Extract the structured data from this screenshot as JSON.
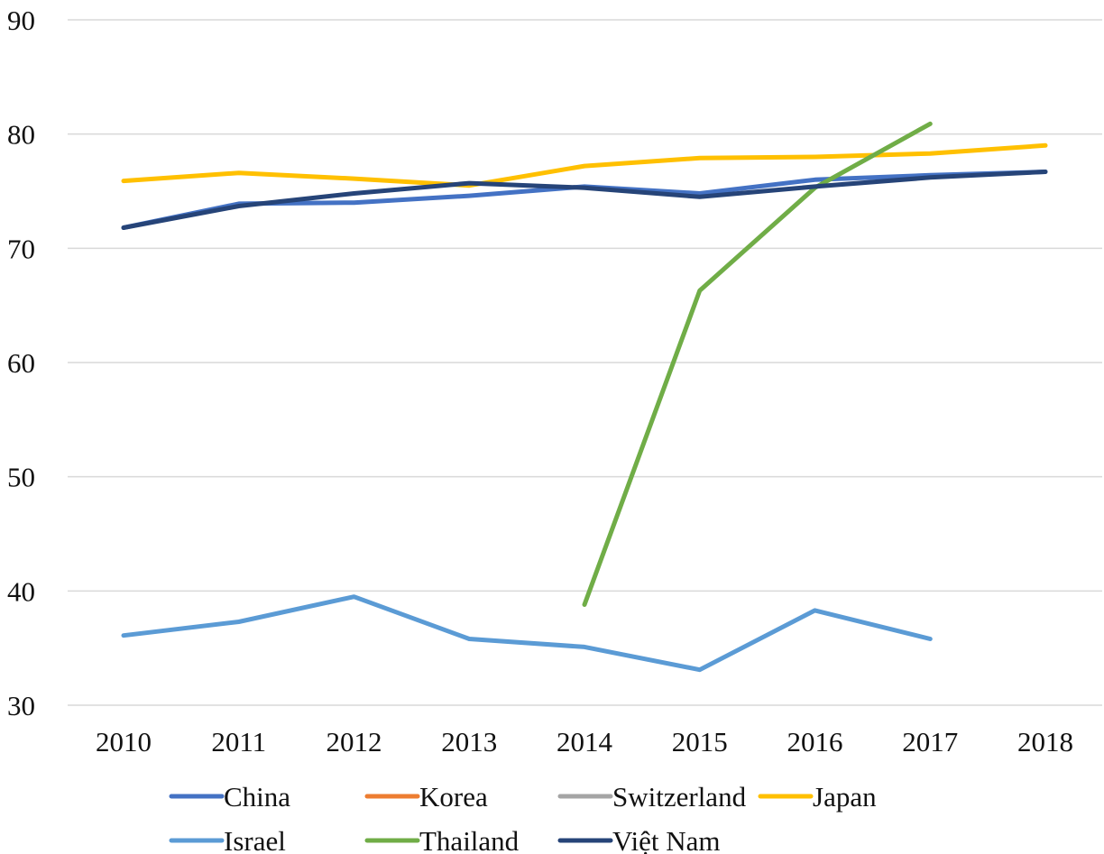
{
  "chart_data": {
    "type": "line",
    "title": "",
    "xlabel": "",
    "ylabel": "",
    "x": [
      "2010",
      "2011",
      "2012",
      "2013",
      "2014",
      "2015",
      "2016",
      "2017",
      "2018"
    ],
    "ylim": [
      30,
      90
    ],
    "yticks": [
      30,
      40,
      50,
      60,
      70,
      80,
      90
    ],
    "grid": "horizontal",
    "legend_position": "bottom",
    "series": [
      {
        "name": "China",
        "color": "#4472c4",
        "values": [
          71.8,
          73.9,
          74.0,
          74.6,
          75.4,
          74.8,
          76.0,
          76.4,
          76.7
        ]
      },
      {
        "name": "Korea",
        "color": "#ed7d31",
        "values": [
          null,
          null,
          null,
          null,
          null,
          null,
          null,
          null,
          null
        ]
      },
      {
        "name": "Switzerland",
        "color": "#a5a5a5",
        "values": [
          null,
          null,
          null,
          null,
          null,
          null,
          null,
          null,
          null
        ]
      },
      {
        "name": "Japan",
        "color": "#ffc000",
        "values": [
          75.9,
          76.6,
          76.1,
          75.5,
          77.2,
          77.9,
          78.0,
          78.3,
          79.0
        ]
      },
      {
        "name": "Israel",
        "color": "#5b9bd5",
        "values": [
          36.1,
          37.3,
          39.5,
          35.8,
          35.1,
          33.1,
          38.3,
          35.8,
          null
        ]
      },
      {
        "name": "Thailand",
        "color": "#70ad47",
        "values": [
          null,
          null,
          null,
          null,
          38.8,
          66.3,
          75.3,
          80.9,
          null
        ]
      },
      {
        "name": "Việt Nam",
        "color": "#264478",
        "values": [
          71.8,
          73.7,
          74.8,
          75.7,
          75.3,
          74.5,
          75.4,
          76.2,
          76.7
        ]
      }
    ]
  }
}
